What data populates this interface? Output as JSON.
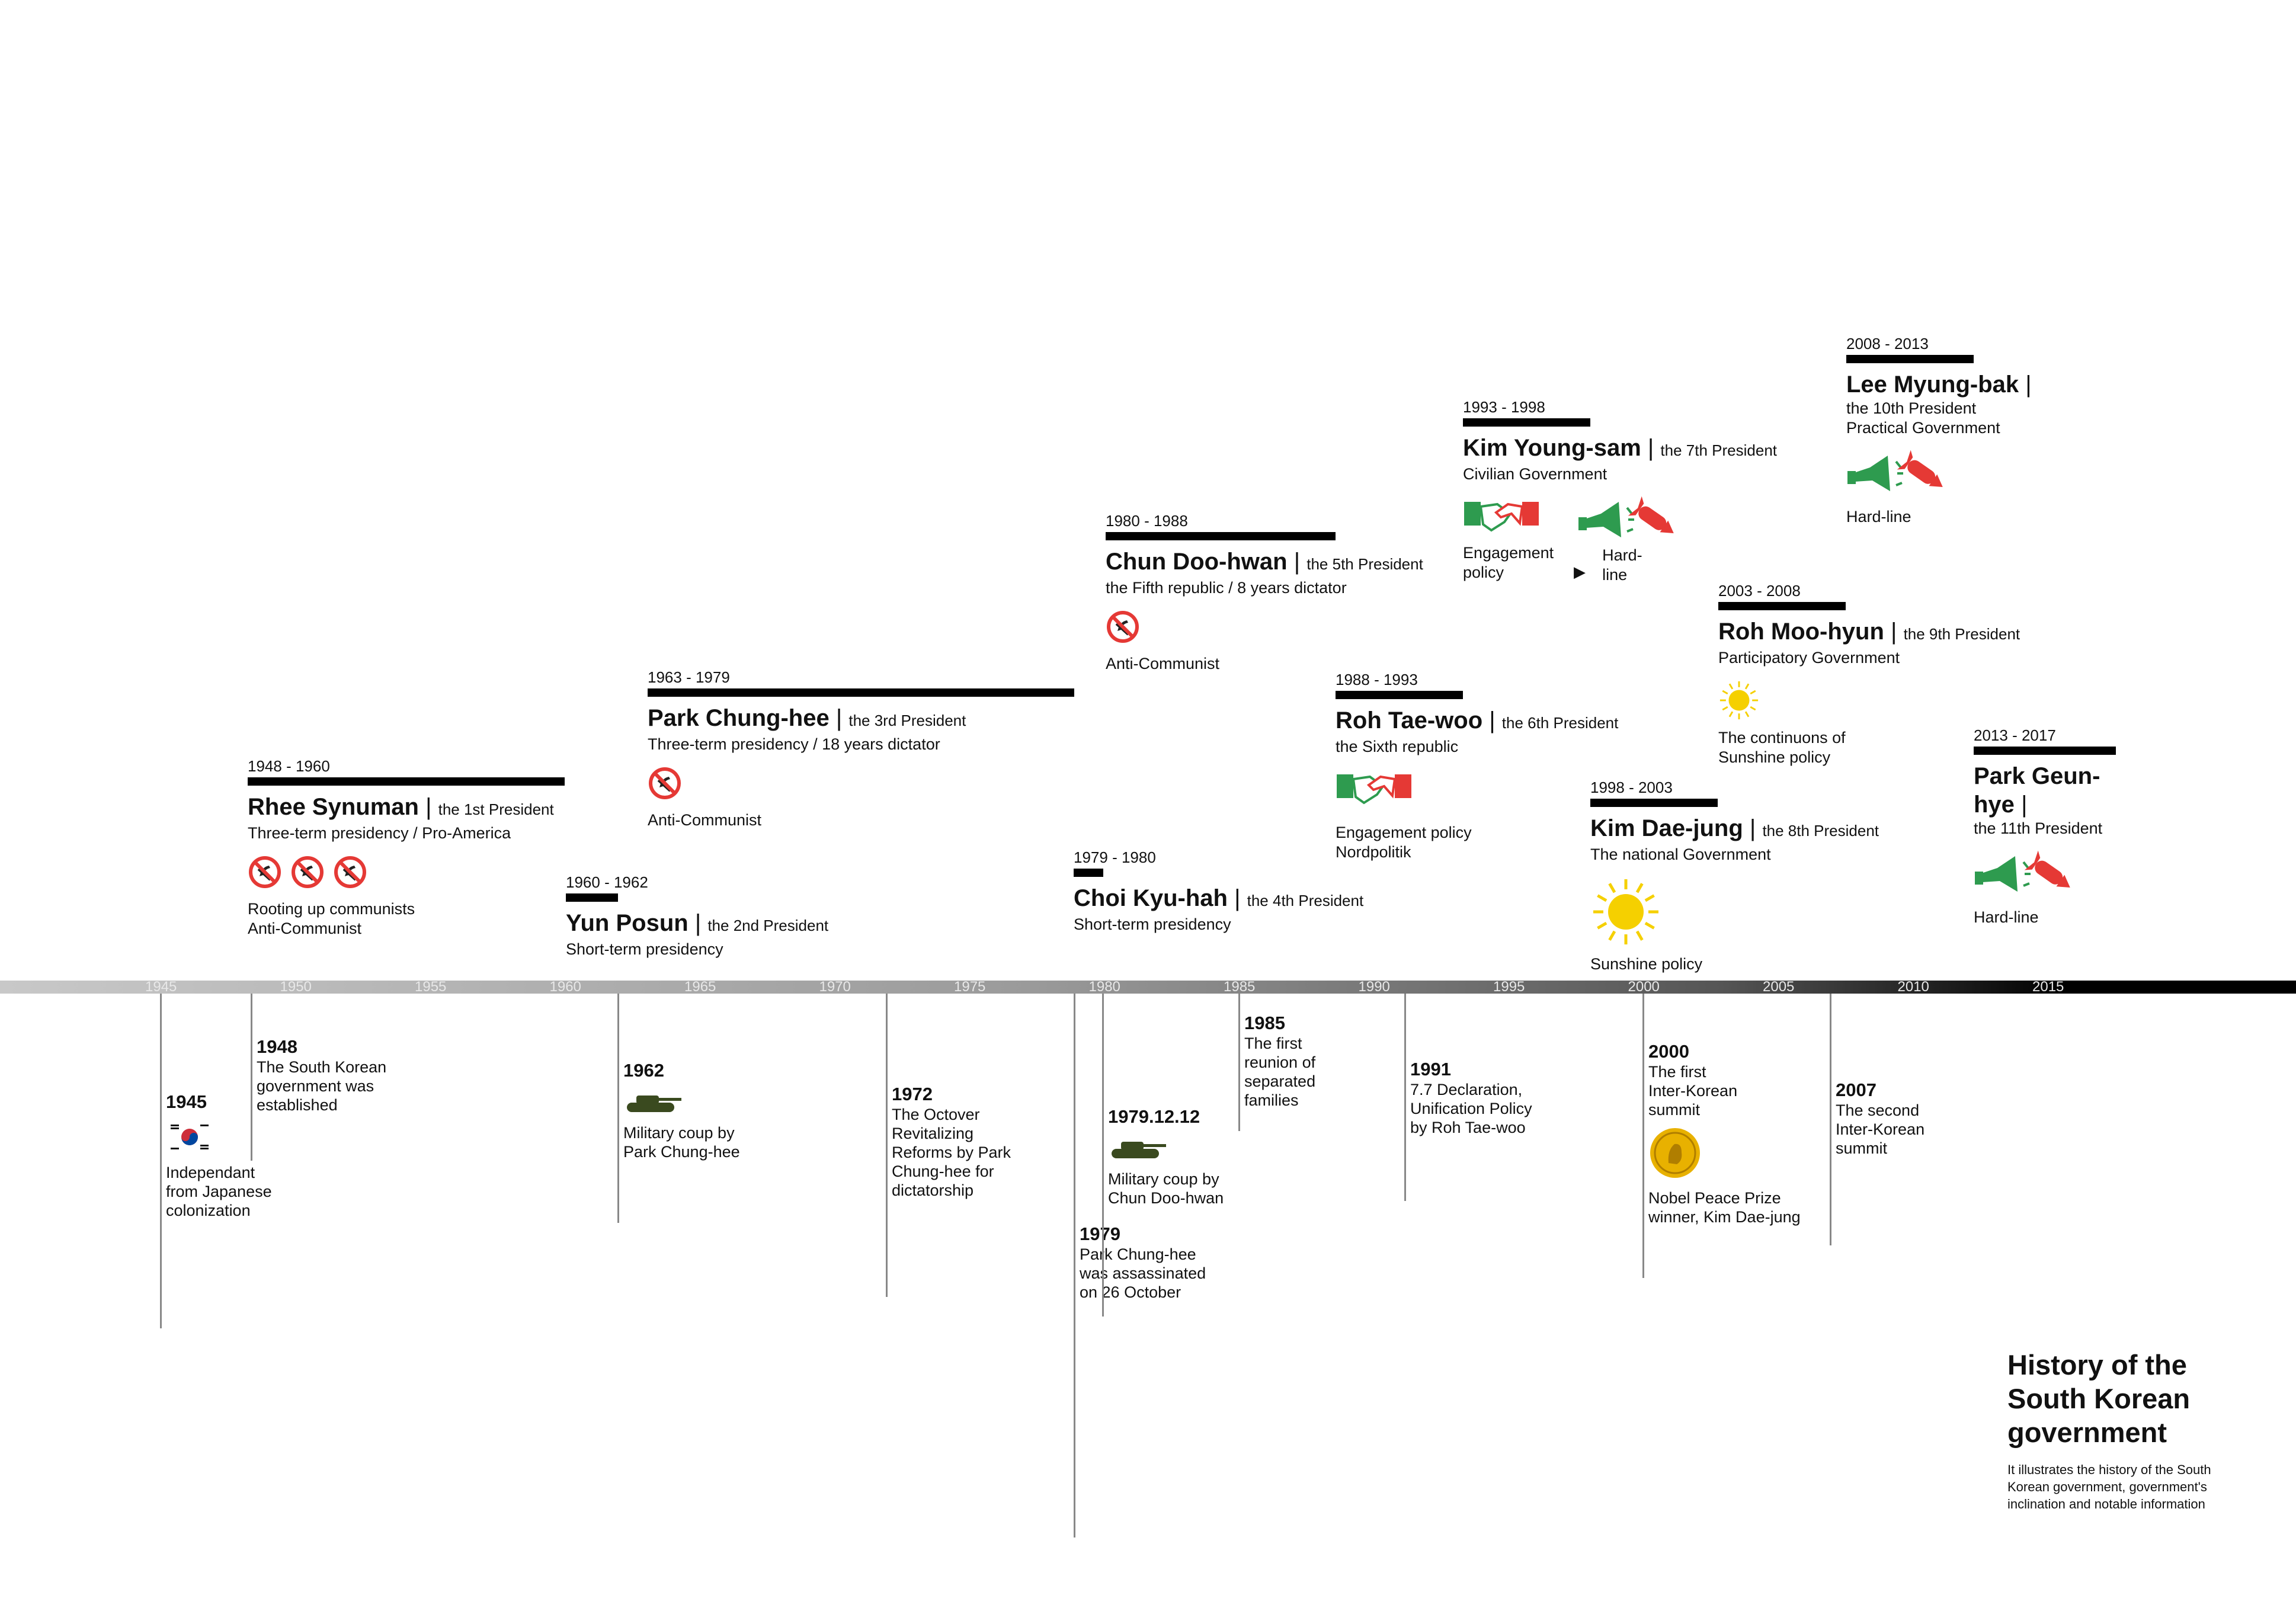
{
  "title": "History of the South Korean government",
  "description": "It illustrates the history of the South Korean government, government's inclination and notable information",
  "colors": {
    "accent_red": "#e53935",
    "accent_green": "#2e9b4f",
    "gold": "#e8b100",
    "sun": "#f5d000",
    "tank": "#3a4a1f"
  },
  "axis_ticks": [
    "1945",
    "1950",
    "1955",
    "1960",
    "1965",
    "1970",
    "1975",
    "1980",
    "1985",
    "1990",
    "1995",
    "2000",
    "2005",
    "2010",
    "2015"
  ],
  "presidents": [
    {
      "years": "1948 - 1960",
      "name": "Rhee Synuman",
      "ordinal": "the 1st President",
      "lines": [
        "Three-term presidency / Pro-America"
      ],
      "icons": [
        "no-communism-icon",
        "no-communism-icon",
        "no-communism-icon"
      ],
      "policy": [
        "Rooting up communists",
        "Anti-Communist"
      ]
    },
    {
      "years": "1960 - 1962",
      "name": "Yun Posun",
      "ordinal": "the 2nd President",
      "lines": [
        "Short-term presidency"
      ],
      "icons": [],
      "policy": []
    },
    {
      "years": "1963 - 1979",
      "name": "Park Chung-hee",
      "ordinal": "the 3rd President",
      "lines": [
        "Three-term presidency / 18 years dictator"
      ],
      "icons": [
        "no-communism-icon"
      ],
      "policy": [
        "Anti-Communist"
      ]
    },
    {
      "years": "1979 - 1980",
      "name": "Choi Kyu-hah",
      "ordinal": "the 4th President",
      "lines": [
        "Short-term presidency"
      ],
      "icons": [],
      "policy": []
    },
    {
      "years": "1980 - 1988",
      "name": "Chun Doo-hwan",
      "ordinal": "the 5th President",
      "lines": [
        "the Fifth republic / 8 years dictator"
      ],
      "icons": [
        "no-communism-icon"
      ],
      "policy": [
        "Anti-Communist"
      ]
    },
    {
      "years": "1988 - 1993",
      "name": "Roh Tae-woo",
      "ordinal": "the 6th President",
      "lines": [
        "the Sixth republic"
      ],
      "icons": [
        "handshake-icon"
      ],
      "policy": [
        "Engagement policy",
        "Nordpolitik"
      ]
    },
    {
      "years": "1993 - 1998",
      "name": "Kim Young-sam",
      "ordinal": "the 7th President",
      "lines": [
        "Civilian Government"
      ],
      "icons": [
        "handshake-icon"
      ],
      "policy": [
        "Engagement",
        "policy"
      ],
      "policy2": [
        "Hard-",
        "line"
      ]
    },
    {
      "years": "1998 - 2003",
      "name": "Kim Dae-jung",
      "ordinal": "the 8th President",
      "lines": [
        "The national Government"
      ],
      "icons": [
        "sun-icon"
      ],
      "policy": [
        "Sunshine policy"
      ]
    },
    {
      "years": "2003 - 2008",
      "name": "Roh Moo-hyun",
      "ordinal": "the 9th President",
      "lines": [
        "Participatory Government"
      ],
      "icons": [
        "sun-icon"
      ],
      "policy": [
        "The continuons of",
        "Sunshine policy"
      ]
    },
    {
      "years": "2008 - 2013",
      "name": "Lee Myung-bak",
      "ordinal": "the 10th President",
      "lines": [
        "Practical Government"
      ],
      "icons": [
        "megaphone-missile-icon"
      ],
      "policy": [
        "Hard-line"
      ]
    },
    {
      "years": "2013 - 2017",
      "name": "Park Geun-hye",
      "ordinal": "the 11th President",
      "lines": [],
      "icons": [
        "megaphone-missile-icon"
      ],
      "policy": [
        "Hard-line"
      ]
    }
  ],
  "events": [
    {
      "year": "1945",
      "text": "Independant\nfrom Japanese\ncolonization",
      "icon": "korea-flag-icon"
    },
    {
      "year": "1948",
      "text": "The South Korean\ngovernment was\nestablished",
      "icon": ""
    },
    {
      "year": "1962",
      "text": "Military coup by\nPark Chung-hee",
      "icon": "tank-icon"
    },
    {
      "year": "1972",
      "text": "The Octover\nRevitalizing\nReforms by Park\nChung-hee for\ndictatorship",
      "icon": ""
    },
    {
      "year": "1979",
      "text": "Park Chung-hee\nwas assassinated\non 26 October",
      "icon": ""
    },
    {
      "year": "1979.12.12",
      "text": "Military coup by\nChun Doo-hwan",
      "icon": "tank-icon"
    },
    {
      "year": "1985",
      "text": "The first\nreunion of\nseparated\nfamilies",
      "icon": ""
    },
    {
      "year": "1991",
      "text": "7.7 Declaration,\nUnification Policy\nby Roh Tae-woo",
      "icon": ""
    },
    {
      "year": "2000",
      "text": "The first\nInter-Korean\nsummit",
      "icon": "nobel-medal-icon",
      "text2": "Nobel Peace Prize\nwinner, Kim Dae-jung"
    },
    {
      "year": "2007",
      "text": "The second\nInter-Korean\nsummit",
      "icon": ""
    }
  ]
}
